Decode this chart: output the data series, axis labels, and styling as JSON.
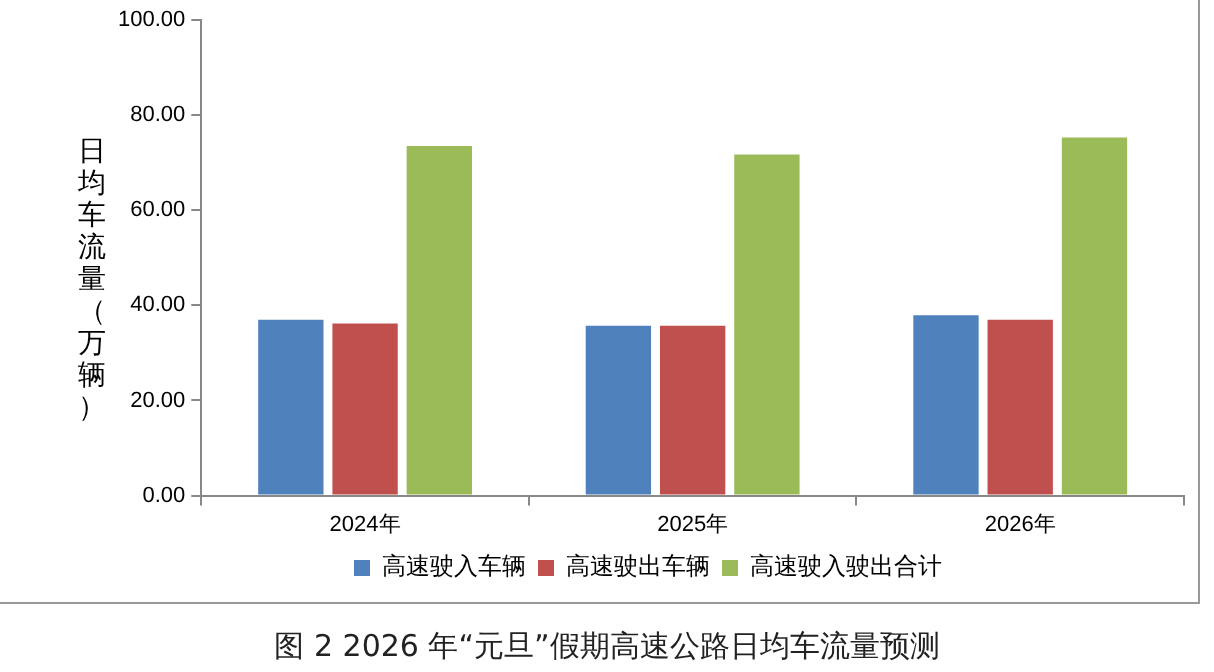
{
  "chart_data": {
    "type": "bar",
    "title": "图 2 2026 年“元旦”假期高速公路日均车流量预测",
    "ylabel": "日均车流量（万辆）",
    "categories": [
      "2024年",
      "2025年",
      "2026年"
    ],
    "series": [
      {
        "name": "高速驶入车辆",
        "color": "#4f81bd",
        "values": [
          37.0,
          35.7,
          37.9
        ]
      },
      {
        "name": "高速驶出车辆",
        "color": "#c0504d",
        "values": [
          36.2,
          35.7,
          37.0
        ]
      },
      {
        "name": "高速驶入驶出合计",
        "color": "#9bbb59",
        "values": [
          73.5,
          71.7,
          75.3
        ]
      }
    ],
    "ylim": [
      0,
      100
    ],
    "yticks": [
      {
        "value": 0,
        "label": "0.00"
      },
      {
        "value": 20,
        "label": "20.00"
      },
      {
        "value": 40,
        "label": "40.00"
      },
      {
        "value": 60,
        "label": "60.00"
      },
      {
        "value": 80,
        "label": "80.00"
      },
      {
        "value": 100,
        "label": "100.00"
      }
    ],
    "grid": false,
    "legend": "bottom"
  }
}
